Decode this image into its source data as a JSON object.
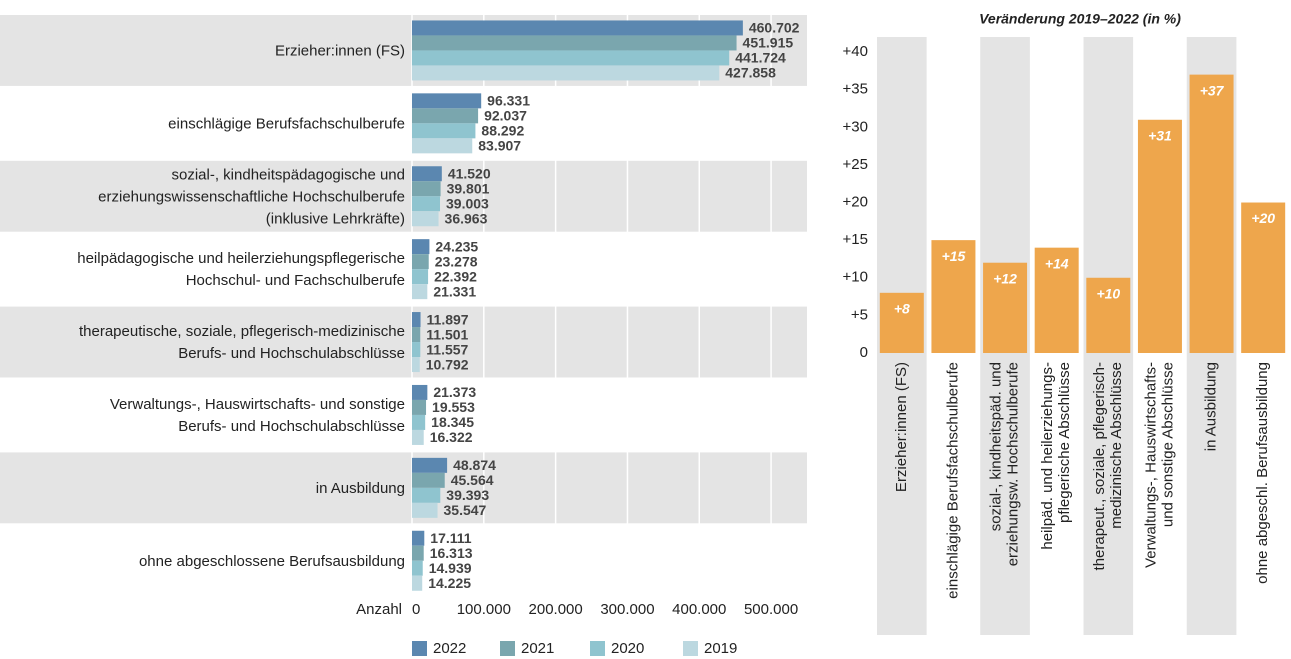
{
  "chart_data": [
    {
      "type": "bar",
      "orientation": "horizontal",
      "xlabel": "Anzahl",
      "categories": [
        "Erzieher:innen (FS)",
        "einschlägige Berufsfachschulberufe",
        "sozial-, kindheitspädagogische und\nerziehungswissenschaftliche Hochschulberufe\n(inklusive Lehrkräfte)",
        "heilpädagogische und heilerziehungspflegerische\nHochschul- und Fachschulberufe",
        "therapeutische, soziale, pflegerisch-medizinische\nBerufs- und Hochschulabschlüsse",
        "Verwaltungs-, Hauswirtschafts- und sonstige\nBerufs- und Hochschulabschlüsse",
        "in Ausbildung",
        "ohne abgeschlossene Berufsausbildung"
      ],
      "series": [
        {
          "name": "2022",
          "color": "#5b87b0",
          "values": [
            460702,
            96331,
            41520,
            24235,
            11897,
            21373,
            48874,
            17111
          ],
          "value_labels": [
            "460.702",
            "96.331",
            "41.520",
            "24.235",
            "11.897",
            "21.373",
            "48.874",
            "17.111"
          ]
        },
        {
          "name": "2021",
          "color": "#7aa6ae",
          "values": [
            451915,
            92037,
            39801,
            23278,
            11501,
            19553,
            45564,
            16313
          ],
          "value_labels": [
            "451.915",
            "92.037",
            "39.801",
            "23.278",
            "11.501",
            "19.553",
            "45.564",
            "16.313"
          ]
        },
        {
          "name": "2020",
          "color": "#8fc4cf",
          "values": [
            441724,
            88292,
            39003,
            22392,
            11557,
            18345,
            39393,
            14939
          ],
          "value_labels": [
            "441.724",
            "88.292",
            "39.003",
            "22.392",
            "11.557",
            "18.345",
            "39.393",
            "14.939"
          ]
        },
        {
          "name": "2019",
          "color": "#bcd8e0",
          "values": [
            427858,
            83907,
            36963,
            21331,
            10792,
            16322,
            35547,
            14225
          ],
          "value_labels": [
            "427.858",
            "83.907",
            "36.963",
            "21.331",
            "10.792",
            "16.322",
            "35.547",
            "14.225"
          ]
        }
      ],
      "xlim": [
        0,
        550000
      ],
      "xticks": [
        0,
        {
          "value": 100000,
          "label": "100.000"
        },
        {
          "value": 200000,
          "label": "200.000"
        },
        {
          "value": 300000,
          "label": "300.000"
        },
        {
          "value": 400000,
          "label": "400.000"
        },
        {
          "value": 500000,
          "label": "500.000"
        }
      ],
      "grid": true,
      "legend": "bottom"
    },
    {
      "type": "bar",
      "title": "Veränderung 2019–2022 (in %)",
      "categories": [
        "Erzieher:innen (FS)",
        "einschlägige Berufsfachschulberufe",
        "sozial-, kindheitspäd. und\nerziehungsw. Hochschulberufe",
        "heilpäd. und heilerziehungs-\npflegerische Abschlüsse",
        "therapeut., soziale, pflegerisch-\nmedizinische Abschlüsse",
        "Verwaltungs-, Hauswirtschafts-\nund sonstige Abschlüsse",
        "in Ausbildung",
        "ohne abgeschl. Berufsausbildung"
      ],
      "values": [
        8,
        15,
        12,
        14,
        10,
        31,
        37,
        20
      ],
      "value_labels": [
        "+8",
        "+15",
        "+12",
        "+14",
        "+10",
        "+31",
        "+37",
        "+20"
      ],
      "color": "#eea64c",
      "ylim": [
        0,
        42
      ],
      "yticks": [
        0,
        {
          "value": 5,
          "label": "+5"
        },
        {
          "value": 10,
          "label": "+10"
        },
        {
          "value": 15,
          "label": "+15"
        },
        {
          "value": 20,
          "label": "+20"
        },
        {
          "value": 25,
          "label": "+25"
        },
        {
          "value": 30,
          "label": "+30"
        },
        {
          "value": 35,
          "label": "+35"
        },
        {
          "value": 40,
          "label": "+40"
        }
      ]
    }
  ]
}
